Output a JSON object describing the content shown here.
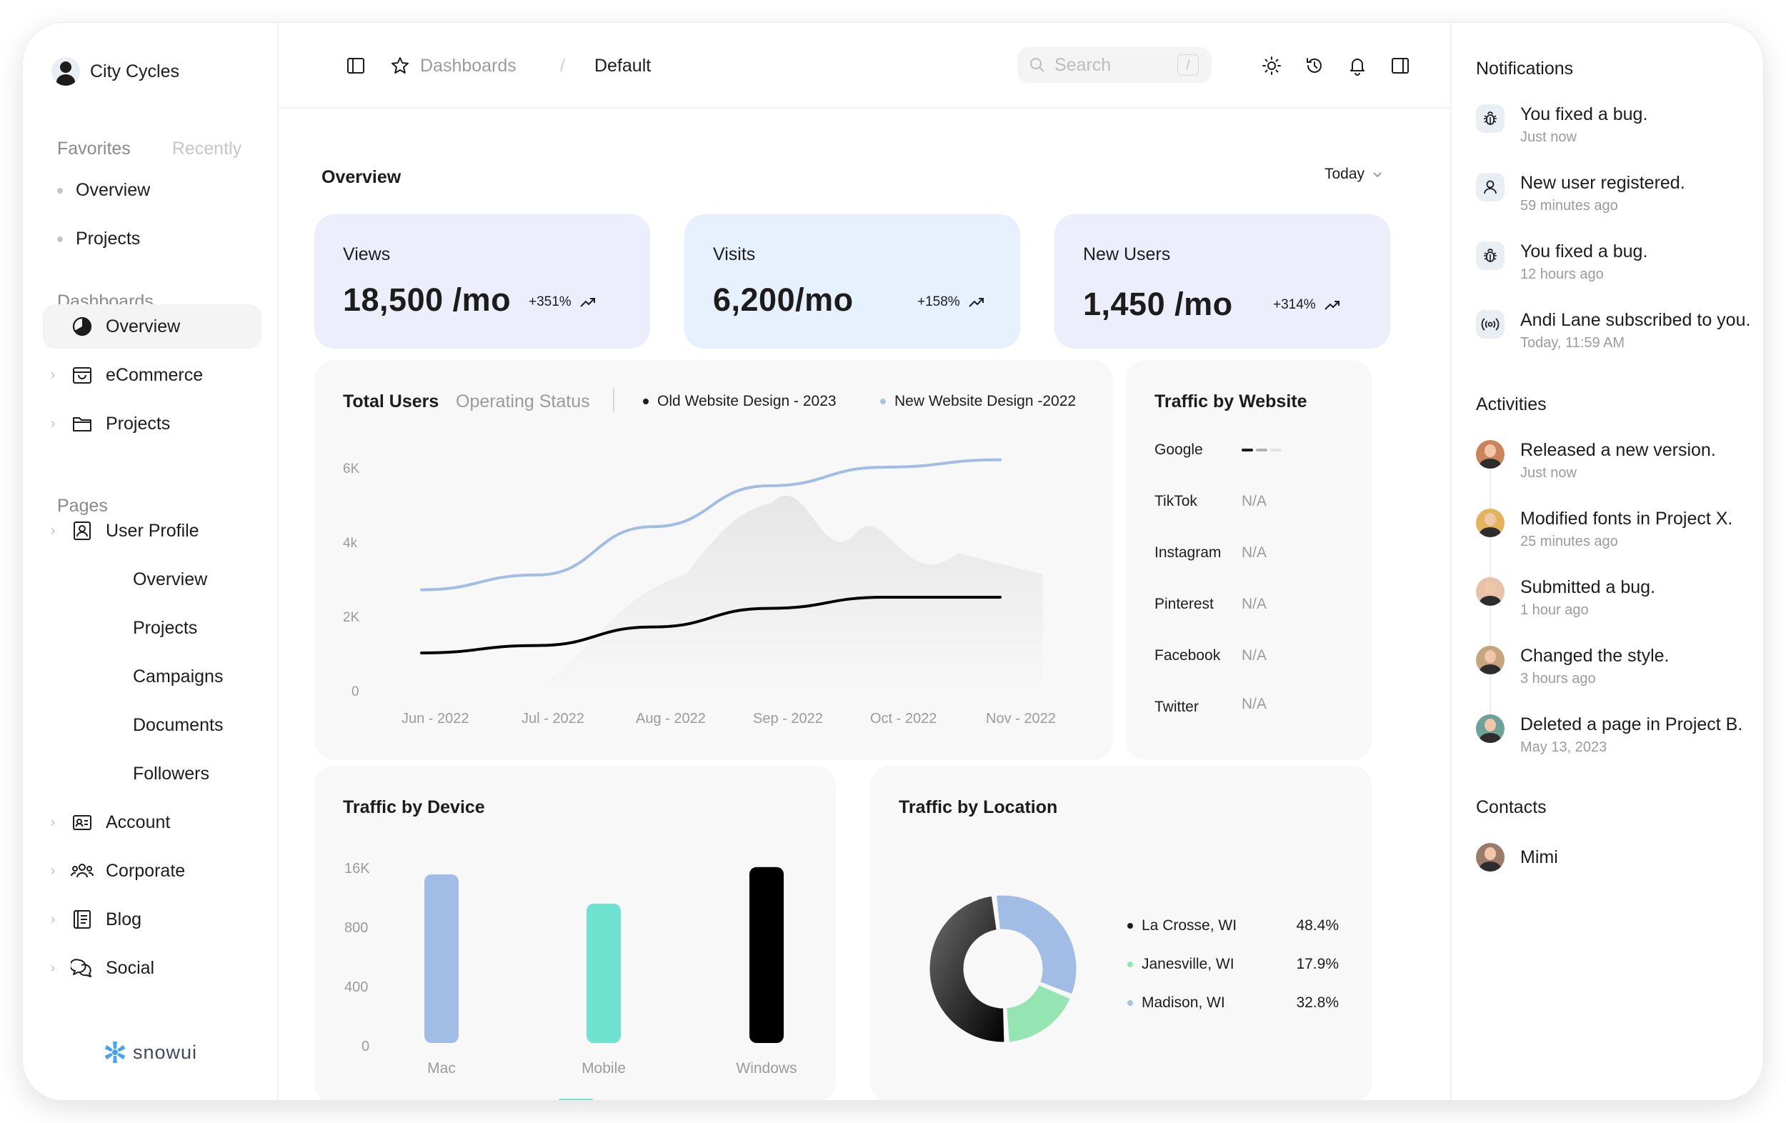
{
  "brand": {
    "name": "City Cycles"
  },
  "sidebar": {
    "favorites_tab": "Favorites",
    "recently_tab": "Recently",
    "favorites": [
      "Overview",
      "Projects"
    ],
    "dashboards_label": "Dashboards",
    "dashboards": [
      {
        "label": "Overview",
        "icon": "pie-chart-icon",
        "active": true
      },
      {
        "label": "eCommerce",
        "icon": "shopping-bag-icon"
      },
      {
        "label": "Projects",
        "icon": "folder-icon"
      }
    ],
    "pages_label": "Pages",
    "pages": [
      {
        "label": "User Profile",
        "icon": "user-profile-icon"
      },
      {
        "label": "Overview"
      },
      {
        "label": "Projects"
      },
      {
        "label": "Campaigns"
      },
      {
        "label": "Documents"
      },
      {
        "label": "Followers"
      },
      {
        "label": "Account",
        "icon": "id-card-icon"
      },
      {
        "label": "Corporate",
        "icon": "users-icon"
      },
      {
        "label": "Blog",
        "icon": "notebook-icon"
      },
      {
        "label": "Social",
        "icon": "chat-icon"
      }
    ],
    "logo_text": "snowui"
  },
  "topbar": {
    "breadcrumb": [
      "Dashboards",
      "Default"
    ],
    "breadcrumb_sep": "/",
    "search_placeholder": "Search",
    "search_shortcut": "/"
  },
  "main": {
    "title": "Overview",
    "period": "Today",
    "stats": [
      {
        "label": "Views",
        "value": "18,500 /mo",
        "change": "+351%",
        "bg": "#edeefc"
      },
      {
        "label": "Visits",
        "value": "6,200/mo",
        "change": "+158%",
        "bg": "#e6f1fd"
      },
      {
        "label": "New Users",
        "value": "1,450 /mo",
        "change": "+314%",
        "bg": "#edeefc"
      }
    ],
    "total_users": {
      "tab_active": "Total Users",
      "tab_inactive": "Operating Status",
      "legend": [
        {
          "name": "Old Website Design - 2023",
          "color": "#1c1c1c"
        },
        {
          "name": "New Website Design -2022",
          "color": "#a8c5da"
        }
      ],
      "y_ticks": [
        "6K",
        "4k",
        "2K",
        "0"
      ],
      "x_ticks": [
        "Jun - 2022",
        "Jul - 2022",
        "Aug - 2022",
        "Sep - 2022",
        "Oct - 2022",
        "Nov - 2022"
      ]
    },
    "traffic_website": {
      "title": "Traffic by Website",
      "sites": [
        {
          "name": "Google",
          "value": ""
        },
        {
          "name": "TikTok",
          "value": "N/A"
        },
        {
          "name": "Instagram",
          "value": "N/A"
        },
        {
          "name": "Pinterest",
          "value": "N/A"
        },
        {
          "name": "Facebook",
          "value": "N/A"
        },
        {
          "name": "Twitter",
          "value": "N/A"
        }
      ]
    },
    "traffic_device": {
      "title": "Traffic by Device",
      "y_ticks": [
        "16K",
        "800",
        "400",
        "0"
      ]
    },
    "traffic_location": {
      "title": "Traffic by Location",
      "locations": [
        {
          "name": "La Crosse, WI",
          "pct": "48.4%",
          "color": "#1c1c1c"
        },
        {
          "name": "Janesville, WI",
          "pct": "17.9%",
          "color": "#95e5b3"
        },
        {
          "name": "Madison, WI",
          "pct": "32.8%",
          "color": "#a8c5da"
        }
      ]
    }
  },
  "chart_data": [
    {
      "type": "line",
      "title": "Total Users",
      "x": [
        "Jun - 2022",
        "Jul - 2022",
        "Aug - 2022",
        "Sep - 2022",
        "Oct - 2022",
        "Nov - 2022"
      ],
      "ylim": [
        0,
        6000
      ],
      "series": [
        {
          "name": "Old Website Design - 2023",
          "values": [
            1000,
            1200,
            1700,
            2200,
            2500,
            2500
          ]
        },
        {
          "name": "New Website Design -2022",
          "values": [
            2700,
            3100,
            4400,
            5500,
            6000,
            6200
          ]
        }
      ]
    },
    {
      "type": "bar",
      "title": "Traffic by Device",
      "categories": [
        "Mac",
        "Mobile",
        "Windows"
      ],
      "values": [
        1150,
        950,
        1200
      ],
      "colors": [
        "#a1bce5",
        "#6fe3d0",
        "#000000"
      ]
    },
    {
      "type": "pie",
      "title": "Traffic by Location",
      "categories": [
        "La Crosse, WI",
        "Janesville, WI",
        "Madison, WI"
      ],
      "values": [
        48.4,
        17.9,
        32.8
      ]
    }
  ],
  "right_panel": {
    "notifications_title": "Notifications",
    "notifications": [
      {
        "text": "You fixed a bug.",
        "time": "Just now",
        "icon": "bug-icon"
      },
      {
        "text": "New user registered.",
        "time": "59 minutes ago",
        "icon": "user-icon"
      },
      {
        "text": "You fixed a bug.",
        "time": "12 hours ago",
        "icon": "bug-icon"
      },
      {
        "text": "Andi Lane subscribed to you.",
        "time": "Today, 11:59 AM",
        "icon": "broadcast-icon"
      }
    ],
    "activities_title": "Activities",
    "activities": [
      {
        "text": "Released a new version.",
        "time": "Just now",
        "bg": "#c9845b"
      },
      {
        "text": "Modified fonts in Project X.",
        "time": "25 minutes ago",
        "bg": "#e3b35b"
      },
      {
        "text": "Submitted a bug.",
        "time": "1 hour ago",
        "bg": "#e8c2a8"
      },
      {
        "text": "Changed the style.",
        "time": "3 hours ago",
        "bg": "#c5a47e"
      },
      {
        "text": "Deleted a page in Project B.",
        "time": "May 13, 2023",
        "bg": "#6fa09a"
      }
    ],
    "contacts_title": "Contacts",
    "contacts": [
      {
        "name": "Mimi",
        "bg": "#9b7b6a"
      }
    ]
  }
}
